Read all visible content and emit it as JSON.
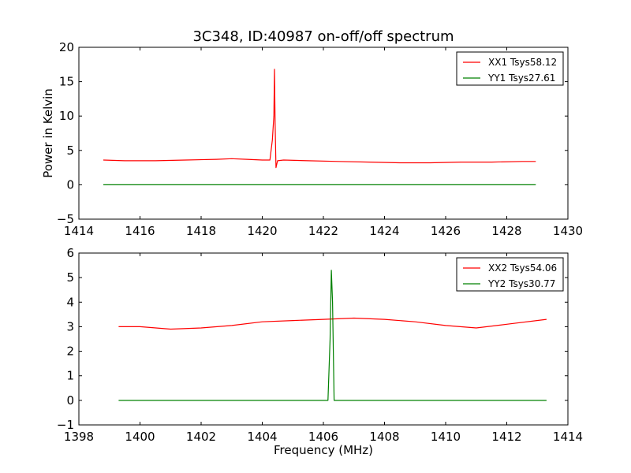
{
  "figure": {
    "title": "3C348, ID:40987 on-off/off spectrum",
    "ylabel": "Power in Kelvin",
    "xlabel": "Frequency (MHz)"
  },
  "chart_data": [
    {
      "type": "line",
      "xlim": [
        1414,
        1430
      ],
      "ylim": [
        -5,
        20
      ],
      "xticks": [
        1414,
        1416,
        1418,
        1420,
        1422,
        1424,
        1426,
        1428,
        1430
      ],
      "yticks": [
        -5,
        0,
        5,
        10,
        15,
        20
      ],
      "legend_position": "top-right",
      "grid": false,
      "series": [
        {
          "name": "XX1 Tsys58.12",
          "color": "#ff0000",
          "x": [
            1414.8,
            1415.5,
            1416.5,
            1417.5,
            1418.5,
            1419.0,
            1419.5,
            1420.0,
            1420.25,
            1420.33,
            1420.38,
            1420.4,
            1420.42,
            1420.45,
            1420.5,
            1420.7,
            1421.5,
            1422.5,
            1423.5,
            1424.5,
            1425.5,
            1426.5,
            1427.5,
            1428.5,
            1428.95
          ],
          "y": [
            3.6,
            3.5,
            3.5,
            3.6,
            3.7,
            3.8,
            3.7,
            3.6,
            3.6,
            6.5,
            10.0,
            16.8,
            9.0,
            2.5,
            3.5,
            3.6,
            3.5,
            3.4,
            3.3,
            3.2,
            3.2,
            3.3,
            3.3,
            3.4,
            3.4
          ]
        },
        {
          "name": "YY1 Tsys27.61",
          "color": "#008000",
          "x": [
            1414.8,
            1417.0,
            1419.0,
            1421.0,
            1423.0,
            1425.0,
            1427.0,
            1428.95
          ],
          "y": [
            0.0,
            0.0,
            0.0,
            0.0,
            0.0,
            0.0,
            0.0,
            0.0
          ]
        }
      ]
    },
    {
      "type": "line",
      "xlim": [
        1398,
        1414
      ],
      "ylim": [
        -1,
        6
      ],
      "xticks": [
        1398,
        1400,
        1402,
        1404,
        1406,
        1408,
        1410,
        1412,
        1414
      ],
      "yticks": [
        -1,
        0,
        1,
        2,
        3,
        4,
        5,
        6
      ],
      "legend_position": "top-right",
      "grid": false,
      "series": [
        {
          "name": "XX2 Tsys54.06",
          "color": "#ff0000",
          "x": [
            1399.3,
            1400.0,
            1401.0,
            1402.0,
            1403.0,
            1404.0,
            1405.0,
            1406.0,
            1407.0,
            1408.0,
            1409.0,
            1410.0,
            1411.0,
            1412.0,
            1413.3
          ],
          "y": [
            3.0,
            3.0,
            2.9,
            2.95,
            3.05,
            3.2,
            3.25,
            3.3,
            3.35,
            3.3,
            3.2,
            3.05,
            2.95,
            3.1,
            3.3
          ]
        },
        {
          "name": "YY2 Tsys30.77",
          "color": "#008000",
          "x": [
            1399.3,
            1401.0,
            1403.0,
            1405.0,
            1406.15,
            1406.22,
            1406.26,
            1406.3,
            1406.35,
            1406.45,
            1408.0,
            1410.0,
            1412.0,
            1413.3
          ],
          "y": [
            0.0,
            0.0,
            0.0,
            0.0,
            0.0,
            2.5,
            5.3,
            4.0,
            0.0,
            0.0,
            0.0,
            0.0,
            0.0,
            0.0
          ]
        }
      ]
    }
  ]
}
